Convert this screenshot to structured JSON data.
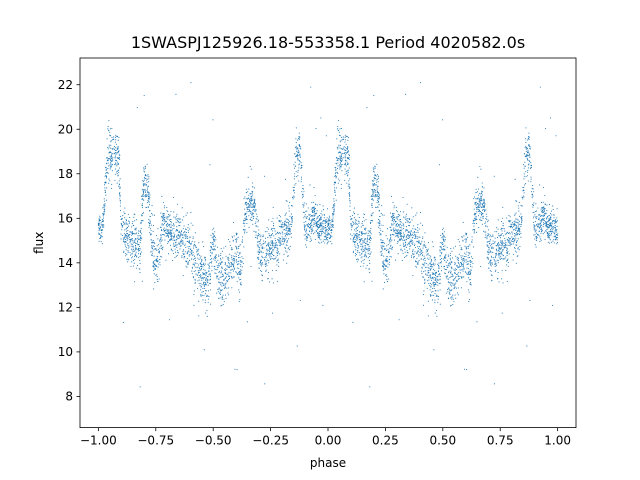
{
  "chart_data": {
    "type": "scatter",
    "title": "1SWASPJ125926.18-553358.1 Period 4020582.0s",
    "xlabel": "phase",
    "ylabel": "flux",
    "xlim": [
      -1.08,
      1.08
    ],
    "ylim": [
      6.6,
      23.2
    ],
    "xticks": [
      -1.0,
      -0.75,
      -0.5,
      -0.25,
      0.0,
      0.25,
      0.5,
      0.75,
      1.0
    ],
    "xtick_labels": [
      "−1.00",
      "−0.75",
      "−0.50",
      "−0.25",
      "0.00",
      "0.25",
      "0.50",
      "0.75",
      "1.00"
    ],
    "yticks": [
      8,
      10,
      12,
      14,
      16,
      18,
      20,
      22
    ],
    "ytick_labels": [
      "8",
      "10",
      "12",
      "14",
      "16",
      "18",
      "20",
      "22"
    ],
    "grid": false,
    "legend": "none",
    "point_color": "#1f77b4",
    "series": [
      {
        "profile": {
          "phase": [
            0.0,
            0.02,
            0.04,
            0.05,
            0.07,
            0.09,
            0.1,
            0.12,
            0.14,
            0.16,
            0.18,
            0.2,
            0.22,
            0.24,
            0.26,
            0.28,
            0.3,
            0.32,
            0.34,
            0.36,
            0.38,
            0.4,
            0.42,
            0.44,
            0.46,
            0.48,
            0.5,
            0.52,
            0.54,
            0.56,
            0.58,
            0.6,
            0.62,
            0.64,
            0.66,
            0.68,
            0.7,
            0.72,
            0.74,
            0.76,
            0.78,
            0.8,
            0.82,
            0.84,
            0.86,
            0.88,
            0.9,
            0.92,
            0.94,
            0.96,
            0.98,
            1.0
          ],
          "flux_center": [
            15.5,
            15.6,
            19.0,
            18.8,
            19.0,
            18.7,
            15.5,
            15.3,
            15.0,
            14.9,
            14.7,
            17.8,
            16.8,
            14.2,
            14.0,
            15.8,
            15.5,
            15.4,
            15.3,
            15.0,
            14.9,
            14.6,
            14.0,
            13.6,
            13.2,
            13.0,
            14.9,
            13.4,
            13.2,
            13.3,
            14.0,
            14.5,
            13.5,
            16.5,
            16.6,
            16.7,
            14.4,
            14.3,
            14.5,
            14.7,
            14.6,
            15.2,
            15.4,
            15.6,
            18.7,
            19.0,
            15.5,
            15.6,
            16.2,
            15.7,
            15.6,
            15.4
          ],
          "flux_spread": [
            0.5,
            0.5,
            1.0,
            1.0,
            1.0,
            1.0,
            0.8,
            0.9,
            0.9,
            0.9,
            0.9,
            0.8,
            1.0,
            1.0,
            1.0,
            0.9,
            0.8,
            0.8,
            0.9,
            0.9,
            0.9,
            1.0,
            1.0,
            1.0,
            1.0,
            1.0,
            0.8,
            1.0,
            1.0,
            1.0,
            1.0,
            1.0,
            1.0,
            0.8,
            0.8,
            0.8,
            1.0,
            1.0,
            1.0,
            1.0,
            1.0,
            0.9,
            0.9,
            0.9,
            0.9,
            0.9,
            0.8,
            0.6,
            0.6,
            0.6,
            0.6,
            0.6
          ]
        },
        "points_per_cycle": 2600,
        "outlier_fraction": 0.015,
        "mirrored_phases": true
      }
    ]
  }
}
